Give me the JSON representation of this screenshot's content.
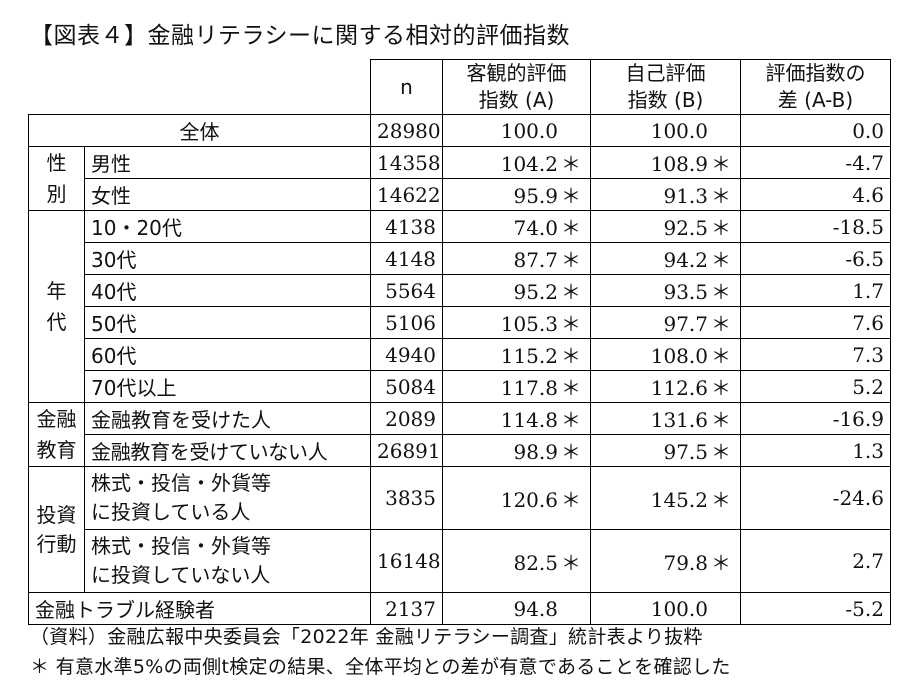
{
  "title": "【図表４】金融リテラシーに関する相対的評価指数",
  "header": {
    "n": "n",
    "a_line1": "客観的評価",
    "a_line2": "指数 (A)",
    "b_line1": "自己評価",
    "b_line2": "指数 (B)",
    "d_line1": "評価指数の",
    "d_line2": "差 (A-B)"
  },
  "rows": {
    "total": {
      "label": "全体",
      "n": "28980",
      "a": "100.0",
      "b": "100.0",
      "d": "0.0"
    },
    "gender_group": [
      "性",
      "別"
    ],
    "male": {
      "label": "男性",
      "n": "14358",
      "a": "104.2",
      "a_star": "＊",
      "b": "108.9",
      "b_star": "＊",
      "d": "-4.7"
    },
    "female": {
      "label": "女性",
      "n": "14622",
      "a": "95.9",
      "a_star": "＊",
      "b": "91.3",
      "b_star": "＊",
      "d": "4.6"
    },
    "age_group": [
      "年",
      "代"
    ],
    "age10_20": {
      "label": "10・20代",
      "n": "4138",
      "a": "74.0",
      "a_star": "＊",
      "b": "92.5",
      "b_star": "＊",
      "d": "-18.5"
    },
    "age30": {
      "label": "30代",
      "n": "4148",
      "a": "87.7",
      "a_star": "＊",
      "b": "94.2",
      "b_star": "＊",
      "d": "-6.5"
    },
    "age40": {
      "label": "40代",
      "n": "5564",
      "a": "95.2",
      "a_star": "＊",
      "b": "93.5",
      "b_star": "＊",
      "d": "1.7"
    },
    "age50": {
      "label": "50代",
      "n": "5106",
      "a": "105.3",
      "a_star": "＊",
      "b": "97.7",
      "b_star": "＊",
      "d": "7.6"
    },
    "age60": {
      "label": "60代",
      "n": "4940",
      "a": "115.2",
      "a_star": "＊",
      "b": "108.0",
      "b_star": "＊",
      "d": "7.3"
    },
    "age70": {
      "label": "70代以上",
      "n": "5084",
      "a": "117.8",
      "a_star": "＊",
      "b": "112.6",
      "b_star": "＊",
      "d": "5.2"
    },
    "edu_group": [
      "金融",
      "教育"
    ],
    "edu_yes": {
      "label": "金融教育を受けた人",
      "n": "2089",
      "a": "114.8",
      "a_star": "＊",
      "b": "131.6",
      "b_star": "＊",
      "d": "-16.9"
    },
    "edu_no": {
      "label": "金融教育を受けていない人",
      "n": "26891",
      "a": "98.9",
      "a_star": "＊",
      "b": "97.5",
      "b_star": "＊",
      "d": "1.3"
    },
    "inv_group": [
      "投資",
      "行動"
    ],
    "inv_yes": {
      "label1": "株式・投信・外貨等",
      "label2": "に投資している人",
      "n": "3835",
      "a": "120.6",
      "a_star": "＊",
      "b": "145.2",
      "b_star": "＊",
      "d": "-24.6"
    },
    "inv_no": {
      "label1": "株式・投信・外貨等",
      "label2": "に投資していない人",
      "n": "16148",
      "a": "82.5",
      "a_star": "＊",
      "b": "79.8",
      "b_star": "＊",
      "d": "2.7"
    },
    "trouble": {
      "label": "金融トラブル経験者",
      "n": "2137",
      "a": "94.8",
      "b": "100.0",
      "d": "-5.2"
    }
  },
  "notes": {
    "source": "（資料）金融広報中央委員会「2022年 金融リテラシー調査」統計表より抜粋",
    "asterisk": "＊ 有意水準5%の両側t検定の結果、全体平均との差が有意であることを確認した"
  }
}
